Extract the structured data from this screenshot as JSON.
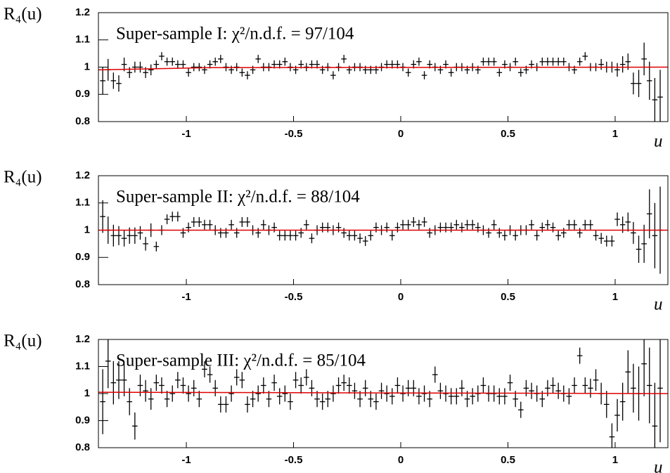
{
  "chart_data": [
    {
      "type": "errorbar",
      "title": "Super-sample I: χ²/n.d.f. = 97/104",
      "ylabel": "R₄(u)",
      "xlabel": "u",
      "color": "#000000",
      "xlim": [
        -1.41,
        1.246
      ],
      "ylim": [
        0.8,
        1.2
      ],
      "xticks": [
        -1,
        -0.5,
        0,
        0.5,
        1
      ],
      "yticks": [
        0.8,
        0.9,
        1,
        1.1,
        1.2
      ],
      "x": [
        -1.39,
        -1.365,
        -1.34,
        -1.315,
        -1.29,
        -1.265,
        -1.24,
        -1.215,
        -1.19,
        -1.165,
        -1.14,
        -1.115,
        -1.09,
        -1.065,
        -1.04,
        -1.015,
        -0.99,
        -0.965,
        -0.94,
        -0.915,
        -0.89,
        -0.865,
        -0.84,
        -0.815,
        -0.79,
        -0.765,
        -0.74,
        -0.715,
        -0.69,
        -0.665,
        -0.64,
        -0.615,
        -0.59,
        -0.565,
        -0.54,
        -0.515,
        -0.49,
        -0.465,
        -0.44,
        -0.415,
        -0.39,
        -0.365,
        -0.34,
        -0.315,
        -0.29,
        -0.265,
        -0.24,
        -0.215,
        -0.19,
        -0.165,
        -0.14,
        -0.115,
        -0.09,
        -0.065,
        -0.04,
        -0.015,
        0.01,
        0.035,
        0.06,
        0.085,
        0.11,
        0.135,
        0.16,
        0.185,
        0.21,
        0.235,
        0.26,
        0.285,
        0.31,
        0.335,
        0.36,
        0.385,
        0.41,
        0.435,
        0.46,
        0.485,
        0.51,
        0.535,
        0.56,
        0.585,
        0.61,
        0.635,
        0.66,
        0.685,
        0.71,
        0.735,
        0.76,
        0.785,
        0.81,
        0.835,
        0.86,
        0.885,
        0.91,
        0.935,
        0.96,
        0.985,
        1.01,
        1.035,
        1.06,
        1.085,
        1.11,
        1.135,
        1.16,
        1.185,
        1.21
      ],
      "values": [
        0.95,
        0.99,
        0.95,
        0.94,
        1.01,
        0.98,
        1.0,
        1.0,
        0.98,
        0.99,
        1.01,
        1.04,
        1.02,
        1.02,
        1.01,
        1.01,
        0.98,
        1.0,
        1.0,
        0.99,
        1.01,
        1.02,
        1.03,
        1.0,
        0.99,
        1.0,
        0.98,
        0.97,
        0.99,
        1.03,
        1.0,
        1.0,
        1.01,
        1.01,
        1.02,
        1.0,
        0.99,
        1.01,
        1.0,
        1.01,
        1.01,
        0.99,
        1.0,
        0.97,
        1.0,
        1.03,
        0.99,
        1.0,
        1.0,
        0.99,
        0.99,
        0.99,
        1.0,
        1.01,
        1.01,
        1.01,
        1.0,
        0.98,
        1.01,
        1.02,
        0.97,
        1.01,
        1.0,
        0.99,
        1.01,
        0.98,
        1.0,
        1.0,
        0.99,
        1.0,
        0.99,
        1.02,
        1.02,
        1.02,
        0.98,
        1.01,
        1.0,
        1.02,
        0.98,
        0.99,
        1.01,
        1.0,
        1.02,
        1.02,
        1.02,
        1.02,
        1.02,
        1.0,
        0.99,
        1.02,
        1.04,
        1.0,
        1.0,
        1.01,
        1.0,
        1.0,
        0.99,
        1.01,
        1.02,
        0.94,
        0.94,
        1.03,
        0.95,
        0.88,
        0.89
      ],
      "errors": [
        0.05,
        0.04,
        0.03,
        0.03,
        0.025,
        0.02,
        0.02,
        0.02,
        0.02,
        0.02,
        0.015,
        0.015,
        0.015,
        0.015,
        0.015,
        0.015,
        0.015,
        0.015,
        0.015,
        0.015,
        0.015,
        0.015,
        0.015,
        0.015,
        0.015,
        0.015,
        0.015,
        0.015,
        0.015,
        0.015,
        0.015,
        0.015,
        0.015,
        0.015,
        0.015,
        0.015,
        0.015,
        0.015,
        0.015,
        0.015,
        0.015,
        0.015,
        0.015,
        0.015,
        0.015,
        0.015,
        0.015,
        0.015,
        0.015,
        0.015,
        0.015,
        0.015,
        0.015,
        0.015,
        0.015,
        0.015,
        0.015,
        0.015,
        0.015,
        0.015,
        0.015,
        0.015,
        0.015,
        0.015,
        0.015,
        0.015,
        0.015,
        0.015,
        0.015,
        0.015,
        0.015,
        0.015,
        0.015,
        0.015,
        0.015,
        0.015,
        0.015,
        0.015,
        0.015,
        0.015,
        0.015,
        0.015,
        0.015,
        0.015,
        0.015,
        0.015,
        0.015,
        0.015,
        0.015,
        0.015,
        0.015,
        0.015,
        0.015,
        0.02,
        0.02,
        0.02,
        0.025,
        0.03,
        0.03,
        0.04,
        0.05,
        0.06,
        0.07,
        0.08,
        0.1
      ],
      "fit": {
        "color": "#e00000",
        "x": [
          -1.41,
          -0.9,
          1.246
        ],
        "values": [
          0.99,
          0.998,
          1.0
        ]
      }
    },
    {
      "type": "errorbar",
      "title": "Super-sample II: χ²/n.d.f. = 88/104",
      "ylabel": "R₄(u)",
      "xlabel": "u",
      "color": "#000000",
      "xlim": [
        -1.41,
        1.246
      ],
      "ylim": [
        0.8,
        1.2
      ],
      "xticks": [
        -1,
        -0.5,
        0,
        0.5,
        1
      ],
      "yticks": [
        0.8,
        0.9,
        1,
        1.1,
        1.2
      ],
      "x": [
        -1.39,
        -1.365,
        -1.34,
        -1.315,
        -1.29,
        -1.265,
        -1.24,
        -1.215,
        -1.19,
        -1.165,
        -1.14,
        -1.115,
        -1.09,
        -1.065,
        -1.04,
        -1.015,
        -0.99,
        -0.965,
        -0.94,
        -0.915,
        -0.89,
        -0.865,
        -0.84,
        -0.815,
        -0.79,
        -0.765,
        -0.74,
        -0.715,
        -0.69,
        -0.665,
        -0.64,
        -0.615,
        -0.59,
        -0.565,
        -0.54,
        -0.515,
        -0.49,
        -0.465,
        -0.44,
        -0.415,
        -0.39,
        -0.365,
        -0.34,
        -0.315,
        -0.29,
        -0.265,
        -0.24,
        -0.215,
        -0.19,
        -0.165,
        -0.14,
        -0.115,
        -0.09,
        -0.065,
        -0.04,
        -0.015,
        0.01,
        0.035,
        0.06,
        0.085,
        0.11,
        0.135,
        0.16,
        0.185,
        0.21,
        0.235,
        0.26,
        0.285,
        0.31,
        0.335,
        0.36,
        0.385,
        0.41,
        0.435,
        0.46,
        0.485,
        0.51,
        0.535,
        0.56,
        0.585,
        0.61,
        0.635,
        0.66,
        0.685,
        0.71,
        0.735,
        0.76,
        0.785,
        0.81,
        0.835,
        0.86,
        0.885,
        0.91,
        0.935,
        0.96,
        0.985,
        1.01,
        1.035,
        1.06,
        1.085,
        1.11,
        1.135,
        1.16,
        1.185,
        1.21
      ],
      "values": [
        1.05,
        1.0,
        0.98,
        0.98,
        0.97,
        0.98,
        0.98,
        0.99,
        0.95,
        1.0,
        0.94,
        1.0,
        1.04,
        1.05,
        1.05,
        0.99,
        1.01,
        1.03,
        1.03,
        1.02,
        1.02,
        1.0,
        0.99,
        0.99,
        1.02,
        0.99,
        1.03,
        1.03,
        1.0,
        0.99,
        1.02,
        1.0,
        1.01,
        0.98,
        0.98,
        0.98,
        0.98,
        0.99,
        1.02,
        0.97,
        1.0,
        1.01,
        1.01,
        1.0,
        1.01,
        0.99,
        0.98,
        0.98,
        0.97,
        0.96,
        0.98,
        1.01,
        1.0,
        1.01,
        0.98,
        1.01,
        1.02,
        1.02,
        1.03,
        1.02,
        1.03,
        0.99,
        1.0,
        1.01,
        1.01,
        1.01,
        1.02,
        1.01,
        1.02,
        1.02,
        1.01,
        1.0,
        0.99,
        1.02,
        0.99,
        0.98,
        1.0,
        0.98,
        1.0,
        1.0,
        1.02,
        0.98,
        1.01,
        1.02,
        1.01,
        0.98,
        0.99,
        1.02,
        1.02,
        0.99,
        1.02,
        1.02,
        0.98,
        0.97,
        0.96,
        0.96,
        1.04,
        1.02,
        1.03,
        0.99,
        0.93,
        0.95,
        1.06,
        0.98,
        1.0
      ],
      "errors": [
        0.06,
        0.05,
        0.04,
        0.035,
        0.03,
        0.03,
        0.03,
        0.025,
        0.025,
        0.025,
        0.018,
        0.018,
        0.018,
        0.018,
        0.018,
        0.018,
        0.018,
        0.018,
        0.018,
        0.018,
        0.018,
        0.018,
        0.018,
        0.018,
        0.018,
        0.018,
        0.018,
        0.018,
        0.018,
        0.018,
        0.018,
        0.018,
        0.018,
        0.018,
        0.018,
        0.018,
        0.018,
        0.018,
        0.018,
        0.018,
        0.018,
        0.018,
        0.018,
        0.018,
        0.018,
        0.018,
        0.018,
        0.018,
        0.018,
        0.018,
        0.018,
        0.018,
        0.018,
        0.018,
        0.018,
        0.018,
        0.018,
        0.018,
        0.018,
        0.018,
        0.018,
        0.018,
        0.018,
        0.018,
        0.018,
        0.018,
        0.018,
        0.018,
        0.018,
        0.018,
        0.018,
        0.018,
        0.018,
        0.018,
        0.018,
        0.018,
        0.018,
        0.018,
        0.018,
        0.018,
        0.018,
        0.018,
        0.018,
        0.018,
        0.018,
        0.018,
        0.018,
        0.018,
        0.018,
        0.018,
        0.018,
        0.018,
        0.018,
        0.02,
        0.02,
        0.02,
        0.025,
        0.03,
        0.035,
        0.04,
        0.05,
        0.07,
        0.09,
        0.12,
        0.16
      ],
      "fit": {
        "color": "#e00000",
        "x": [
          -1.41,
          1.246
        ],
        "values": [
          1.0,
          1.0
        ]
      }
    },
    {
      "type": "errorbar",
      "title": "Super-sample III: χ²/n.d.f. = 85/104",
      "ylabel": "R₄(u)",
      "xlabel": "u",
      "color": "#000000",
      "xlim": [
        -1.41,
        1.246
      ],
      "ylim": [
        0.8,
        1.2
      ],
      "xticks": [
        -1,
        -0.5,
        0,
        0.5,
        1
      ],
      "yticks": [
        0.8,
        0.9,
        1,
        1.1,
        1.2
      ],
      "x": [
        -1.39,
        -1.365,
        -1.34,
        -1.315,
        -1.29,
        -1.265,
        -1.24,
        -1.215,
        -1.19,
        -1.165,
        -1.14,
        -1.115,
        -1.09,
        -1.065,
        -1.04,
        -1.015,
        -0.99,
        -0.965,
        -0.94,
        -0.915,
        -0.89,
        -0.865,
        -0.84,
        -0.815,
        -0.79,
        -0.765,
        -0.74,
        -0.715,
        -0.69,
        -0.665,
        -0.64,
        -0.615,
        -0.59,
        -0.565,
        -0.54,
        -0.515,
        -0.49,
        -0.465,
        -0.44,
        -0.415,
        -0.39,
        -0.365,
        -0.34,
        -0.315,
        -0.29,
        -0.265,
        -0.24,
        -0.215,
        -0.19,
        -0.165,
        -0.14,
        -0.115,
        -0.09,
        -0.065,
        -0.04,
        -0.015,
        0.01,
        0.035,
        0.06,
        0.085,
        0.11,
        0.135,
        0.16,
        0.185,
        0.21,
        0.235,
        0.26,
        0.285,
        0.31,
        0.335,
        0.36,
        0.385,
        0.41,
        0.435,
        0.46,
        0.485,
        0.51,
        0.535,
        0.56,
        0.585,
        0.61,
        0.635,
        0.66,
        0.685,
        0.71,
        0.735,
        0.76,
        0.785,
        0.81,
        0.835,
        0.86,
        0.885,
        0.91,
        0.935,
        0.96,
        0.985,
        1.01,
        1.035,
        1.06,
        1.085,
        1.11,
        1.135,
        1.16,
        1.185,
        1.21
      ],
      "values": [
        0.97,
        1.12,
        1.04,
        1.05,
        1.05,
        0.97,
        0.88,
        1.03,
        1.01,
        0.98,
        1.04,
        1.03,
        0.98,
        1.0,
        1.05,
        1.03,
        1.0,
        1.02,
        0.98,
        1.09,
        1.07,
        1.02,
        0.96,
        0.96,
        1.0,
        1.06,
        1.05,
        0.96,
        0.98,
        1.0,
        1.03,
        0.98,
        1.04,
        0.99,
        1.0,
        0.97,
        1.05,
        1.03,
        1.06,
        1.02,
        0.98,
        0.97,
        0.98,
        1.0,
        1.03,
        1.04,
        1.03,
        1.01,
        0.98,
        1.02,
        0.98,
        0.97,
        1.01,
        1.0,
        0.99,
        1.03,
        1.0,
        1.02,
        1.02,
        0.99,
        1.0,
        0.98,
        1.07,
        1.01,
        1.0,
        0.99,
        0.99,
        1.02,
        0.98,
        0.99,
        1.0,
        1.03,
        1.0,
        1.0,
        0.99,
        0.99,
        1.04,
        0.98,
        0.94,
        1.02,
        1.01,
        1.0,
        0.98,
        1.02,
        1.03,
        1.01,
        1.0,
        0.99,
        1.03,
        1.14,
        1.03,
        1.02,
        1.05,
        1.0,
        0.96,
        0.84,
        0.92,
        0.97,
        1.08,
        1.02,
        1.0,
        1.11,
        1.03,
        0.88,
        1.02
      ],
      "errors": [
        0.12,
        0.1,
        0.08,
        0.07,
        0.06,
        0.05,
        0.05,
        0.04,
        0.04,
        0.04,
        0.03,
        0.03,
        0.03,
        0.03,
        0.03,
        0.03,
        0.03,
        0.03,
        0.03,
        0.03,
        0.03,
        0.03,
        0.03,
        0.03,
        0.03,
        0.03,
        0.03,
        0.03,
        0.03,
        0.03,
        0.03,
        0.03,
        0.03,
        0.03,
        0.03,
        0.03,
        0.03,
        0.03,
        0.03,
        0.03,
        0.03,
        0.03,
        0.03,
        0.03,
        0.03,
        0.03,
        0.03,
        0.03,
        0.03,
        0.03,
        0.03,
        0.03,
        0.03,
        0.03,
        0.03,
        0.03,
        0.03,
        0.03,
        0.03,
        0.03,
        0.03,
        0.03,
        0.03,
        0.03,
        0.03,
        0.03,
        0.03,
        0.03,
        0.03,
        0.03,
        0.03,
        0.03,
        0.03,
        0.03,
        0.03,
        0.03,
        0.03,
        0.03,
        0.03,
        0.03,
        0.03,
        0.03,
        0.03,
        0.03,
        0.03,
        0.03,
        0.03,
        0.03,
        0.03,
        0.03,
        0.03,
        0.035,
        0.04,
        0.04,
        0.05,
        0.05,
        0.06,
        0.07,
        0.08,
        0.09,
        0.1,
        0.12,
        0.14,
        0.16,
        0.2
      ],
      "fit": {
        "color": "#e00000",
        "x": [
          -1.41,
          1.246
        ],
        "values": [
          1.005,
          1.0
        ]
      }
    }
  ]
}
